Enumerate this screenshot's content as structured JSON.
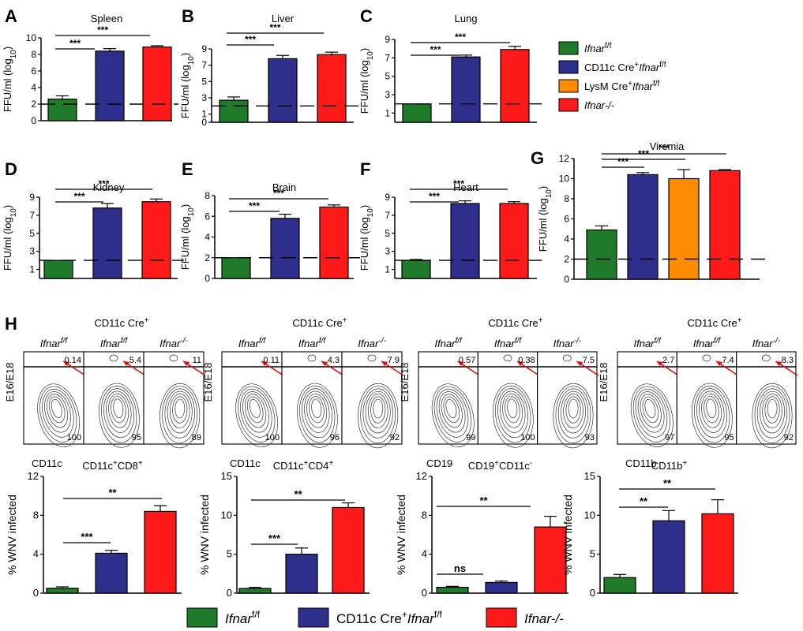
{
  "colors": {
    "green": "#1f7a2a",
    "blue": "#2e2e8c",
    "orange": "#ff8c00",
    "red": "#ff1a1a",
    "black": "#000000"
  },
  "legend_top": [
    {
      "main": "Ifnar",
      "sup": "f/f",
      "color": "green"
    },
    {
      "main": "CD11c Cre",
      "sup": "+",
      "main2": "Ifnar",
      "sup2": "f/f",
      "color": "blue"
    },
    {
      "main": "LysM Cre",
      "sup": "+",
      "main2": "Ifnar",
      "sup2": "f/f",
      "color": "orange"
    },
    {
      "main": "Ifnar-/-",
      "color": "red"
    }
  ],
  "legend_bottom": [
    {
      "main": "Ifnar",
      "sup": "f/f",
      "color": "green"
    },
    {
      "main": "CD11c Cre",
      "sup": "+",
      "main2": "Ifnar",
      "sup2": "f/f",
      "color": "blue"
    },
    {
      "main": "Ifnar-/-",
      "color": "red"
    }
  ],
  "chart_data": [
    {
      "panel": "A",
      "type": "bar",
      "title": "Spleen",
      "ylabel": "FFU/ml (log10)",
      "ylim": [
        0,
        10
      ],
      "yticks": [
        "0",
        "2",
        "4",
        "6",
        "8",
        "10"
      ],
      "values": [
        2.6,
        8.4,
        8.9
      ],
      "errors": [
        0.4,
        0.3,
        0.15
      ],
      "colors": [
        "green",
        "blue",
        "red"
      ],
      "limit_of_detection": 2,
      "sig": [
        "***",
        "***"
      ]
    },
    {
      "panel": "B",
      "type": "bar",
      "title": "Liver",
      "ylabel": "FFU/ml (log10)",
      "ylim": [
        0,
        9
      ],
      "yticks": [
        "0",
        "1",
        "3",
        "5",
        "7",
        "9"
      ],
      "values": [
        2.7,
        7.8,
        8.3
      ],
      "errors": [
        0.4,
        0.4,
        0.3
      ],
      "colors": [
        "green",
        "blue",
        "red"
      ],
      "limit_of_detection": 2,
      "sig": [
        "***",
        "***"
      ]
    },
    {
      "panel": "C",
      "type": "bar",
      "title": "Lung",
      "ylabel": "FFU/ml (log10)",
      "ylim": [
        0,
        9
      ],
      "yticks": [
        "1",
        "3",
        "5",
        "7",
        "9"
      ],
      "values": [
        2.0,
        7.1,
        7.9
      ],
      "errors": [
        0.0,
        0.2,
        0.35
      ],
      "colors": [
        "green",
        "blue",
        "red"
      ],
      "limit_of_detection": 2,
      "sig": [
        "***",
        "***"
      ]
    },
    {
      "panel": "D",
      "type": "bar",
      "title": "Kidney",
      "ylabel": "FFU/ml (log10)",
      "ylim": [
        0,
        9
      ],
      "yticks": [
        "1",
        "3",
        "5",
        "7",
        "9"
      ],
      "values": [
        2.0,
        7.8,
        8.5
      ],
      "errors": [
        0.0,
        0.5,
        0.3
      ],
      "colors": [
        "green",
        "blue",
        "red"
      ],
      "limit_of_detection": 2,
      "sig": [
        "***",
        "***"
      ]
    },
    {
      "panel": "E",
      "type": "bar",
      "title": "Brain",
      "ylabel": "FFU/ml (log10)",
      "ylim": [
        0,
        8
      ],
      "yticks": [
        "0",
        "2",
        "4",
        "6",
        "8"
      ],
      "values": [
        2.0,
        5.8,
        6.9
      ],
      "errors": [
        0.0,
        0.4,
        0.2
      ],
      "colors": [
        "green",
        "blue",
        "red"
      ],
      "limit_of_detection": 2,
      "sig": [
        "***",
        "***"
      ]
    },
    {
      "panel": "F",
      "type": "bar",
      "title": "Heart",
      "ylabel": "FFU/ml (log10)",
      "ylim": [
        0,
        9
      ],
      "yticks": [
        "1",
        "3",
        "5",
        "7",
        "9"
      ],
      "values": [
        2.0,
        8.3,
        8.3
      ],
      "errors": [
        0.1,
        0.3,
        0.2
      ],
      "colors": [
        "green",
        "blue",
        "red"
      ],
      "limit_of_detection": 2,
      "sig": [
        "***",
        "***"
      ]
    },
    {
      "panel": "G",
      "type": "bar",
      "title": "Viremia",
      "ylabel": "FFU/ml (log10)",
      "ylim": [
        0,
        12
      ],
      "yticks": [
        "0",
        "2",
        "4",
        "6",
        "8",
        "10",
        "12"
      ],
      "values": [
        4.9,
        10.4,
        10.0,
        10.8
      ],
      "errors": [
        0.4,
        0.2,
        0.9,
        0.1
      ],
      "colors": [
        "green",
        "blue",
        "orange",
        "red"
      ],
      "limit_of_detection": 2,
      "sig": [
        "***",
        "***",
        "***"
      ]
    },
    {
      "panel": "H1",
      "type": "bar",
      "title": "CD11c+CD8+",
      "ylabel": "% WNV infected",
      "ylim": [
        0,
        12
      ],
      "yticks": [
        "0",
        "4",
        "8",
        "12"
      ],
      "values": [
        0.5,
        4.1,
        8.4
      ],
      "errors": [
        0.15,
        0.3,
        0.6
      ],
      "colors": [
        "green",
        "blue",
        "red"
      ],
      "sig": [
        "***",
        "**"
      ]
    },
    {
      "panel": "H2",
      "type": "bar",
      "title": "CD11c+CD4+",
      "ylabel": "% WNV infected",
      "ylim": [
        0,
        15
      ],
      "yticks": [
        "0",
        "5",
        "10",
        "15"
      ],
      "values": [
        0.6,
        5.0,
        11.0
      ],
      "errors": [
        0.15,
        0.8,
        0.6
      ],
      "colors": [
        "green",
        "blue",
        "red"
      ],
      "sig": [
        "***",
        "**"
      ]
    },
    {
      "panel": "H3",
      "type": "bar",
      "title": "CD19+CD11c-",
      "ylabel": "% WNV infected",
      "ylim": [
        0,
        12
      ],
      "yticks": [
        "0",
        "4",
        "8",
        "12"
      ],
      "values": [
        0.6,
        1.1,
        6.8
      ],
      "errors": [
        0.1,
        0.15,
        1.1
      ],
      "colors": [
        "green",
        "blue",
        "red"
      ],
      "sig": [
        "ns",
        "**"
      ]
    },
    {
      "panel": "H4",
      "type": "bar",
      "title": "CD11b+",
      "ylabel": "% WNV infected",
      "ylim": [
        0,
        15
      ],
      "yticks": [
        "0",
        "5",
        "10",
        "15"
      ],
      "values": [
        2.0,
        9.3,
        10.2
      ],
      "errors": [
        0.4,
        1.3,
        1.8
      ],
      "colors": [
        "green",
        "blue",
        "red"
      ],
      "sig": [
        "**",
        "**"
      ]
    }
  ],
  "flow_panels": [
    {
      "header": "CD11c Cre+",
      "xlabel": "CD11c",
      "ylabel": "E16/E18",
      "labels": [
        {
          "main": "Ifnar",
          "sup": "f/f"
        },
        {
          "main": "Ifnar",
          "sup": "f/f"
        },
        {
          "main": "Ifnar",
          "sup": "-/-"
        }
      ],
      "top": [
        "0.14",
        "5.4",
        "11"
      ],
      "bottom": [
        "100",
        "95",
        "89"
      ]
    },
    {
      "header": "CD11c Cre+",
      "xlabel": "CD11c",
      "ylabel": "E16/E18",
      "labels": [
        {
          "main": "Ifnar",
          "sup": "f/f"
        },
        {
          "main": "Ifnar",
          "sup": "f/f"
        },
        {
          "main": "Ifnar",
          "sup": "-/-"
        }
      ],
      "top": [
        "0.11",
        "4.3",
        "7.9"
      ],
      "bottom": [
        "100",
        "96",
        "92"
      ]
    },
    {
      "header": "CD11c Cre+",
      "xlabel": "CD19",
      "ylabel": "E16/E18",
      "labels": [
        {
          "main": "Ifnar",
          "sup": "f/f"
        },
        {
          "main": "Ifnar",
          "sup": "f/f"
        },
        {
          "main": "Ifnar",
          "sup": "-/-"
        }
      ],
      "top": [
        "0.57",
        "0.38",
        "7.5"
      ],
      "bottom": [
        "99",
        "100",
        "93"
      ]
    },
    {
      "header": "CD11c Cre+",
      "xlabel": "CD11b",
      "ylabel": "E16/E18",
      "labels": [
        {
          "main": "Ifnar",
          "sup": "f/f"
        },
        {
          "main": "Ifnar",
          "sup": "f/f"
        },
        {
          "main": "Ifnar",
          "sup": "-/-"
        }
      ],
      "top": [
        "2.7",
        "7.4",
        "8.3"
      ],
      "bottom": [
        "97",
        "95",
        "92"
      ]
    }
  ],
  "panel_letters": {
    "A": "A",
    "B": "B",
    "C": "C",
    "D": "D",
    "E": "E",
    "F": "F",
    "G": "G",
    "H": "H"
  }
}
